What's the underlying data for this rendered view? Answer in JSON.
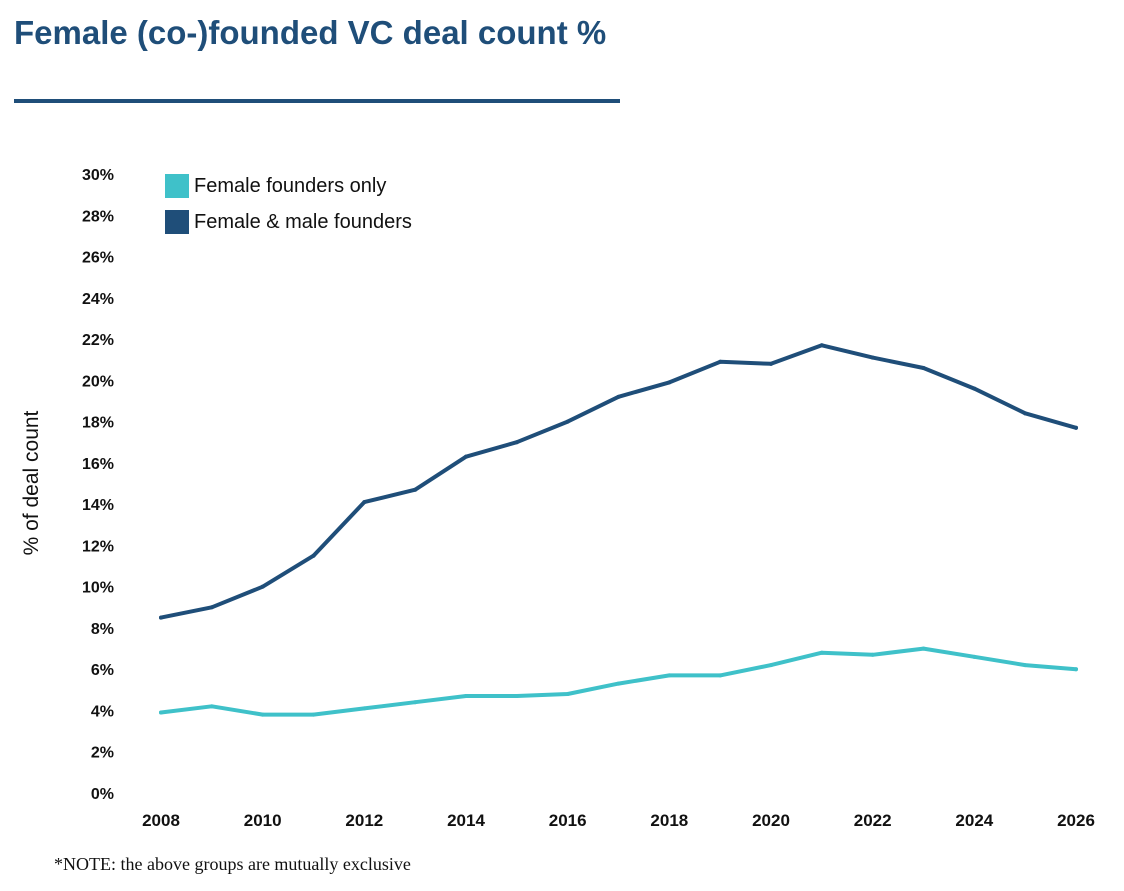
{
  "title": "Female (co-)founded VC deal count %",
  "note": "*NOTE: the above groups are mutually exclusive",
  "colors": {
    "title": "#1f4e79",
    "female_only": "#3fc1c9",
    "female_male": "#1f4e79",
    "axis_text": "#111111"
  },
  "chart_data": {
    "type": "line",
    "title": "Female (co-)founded VC deal count %",
    "xlabel": "",
    "ylabel": "% of deal count",
    "xlim": [
      2008,
      2026
    ],
    "ylim": [
      0,
      30
    ],
    "grid": false,
    "legend_position": "top-left",
    "x_ticks": [
      "2008",
      "2010",
      "2012",
      "2014",
      "2016",
      "2018",
      "2020",
      "2022",
      "2024",
      "2026"
    ],
    "y_ticks": [
      "0%",
      "2%",
      "4%",
      "6%",
      "8%",
      "10%",
      "12%",
      "14%",
      "16%",
      "18%",
      "20%",
      "22%",
      "24%",
      "26%",
      "28%",
      "30%"
    ],
    "x": [
      2008,
      2009,
      2010,
      2011,
      2012,
      2013,
      2014,
      2015,
      2016,
      2017,
      2018,
      2019,
      2020,
      2021,
      2022,
      2023,
      2024,
      2025,
      2026
    ],
    "series": [
      {
        "name": "Female founders only",
        "key": "female_only",
        "values": [
          3.9,
          4.2,
          3.8,
          3.8,
          4.1,
          4.4,
          4.7,
          4.7,
          4.8,
          5.3,
          5.7,
          5.7,
          6.2,
          6.8,
          6.7,
          7.0,
          6.6,
          6.2,
          6.0
        ]
      },
      {
        "name": "Female & male founders",
        "key": "female_male",
        "values": [
          8.5,
          9.0,
          10.0,
          11.5,
          14.1,
          14.7,
          16.3,
          17.0,
          18.0,
          19.2,
          19.9,
          20.9,
          20.8,
          21.7,
          21.1,
          20.6,
          19.6,
          18.4,
          17.7
        ]
      }
    ]
  }
}
